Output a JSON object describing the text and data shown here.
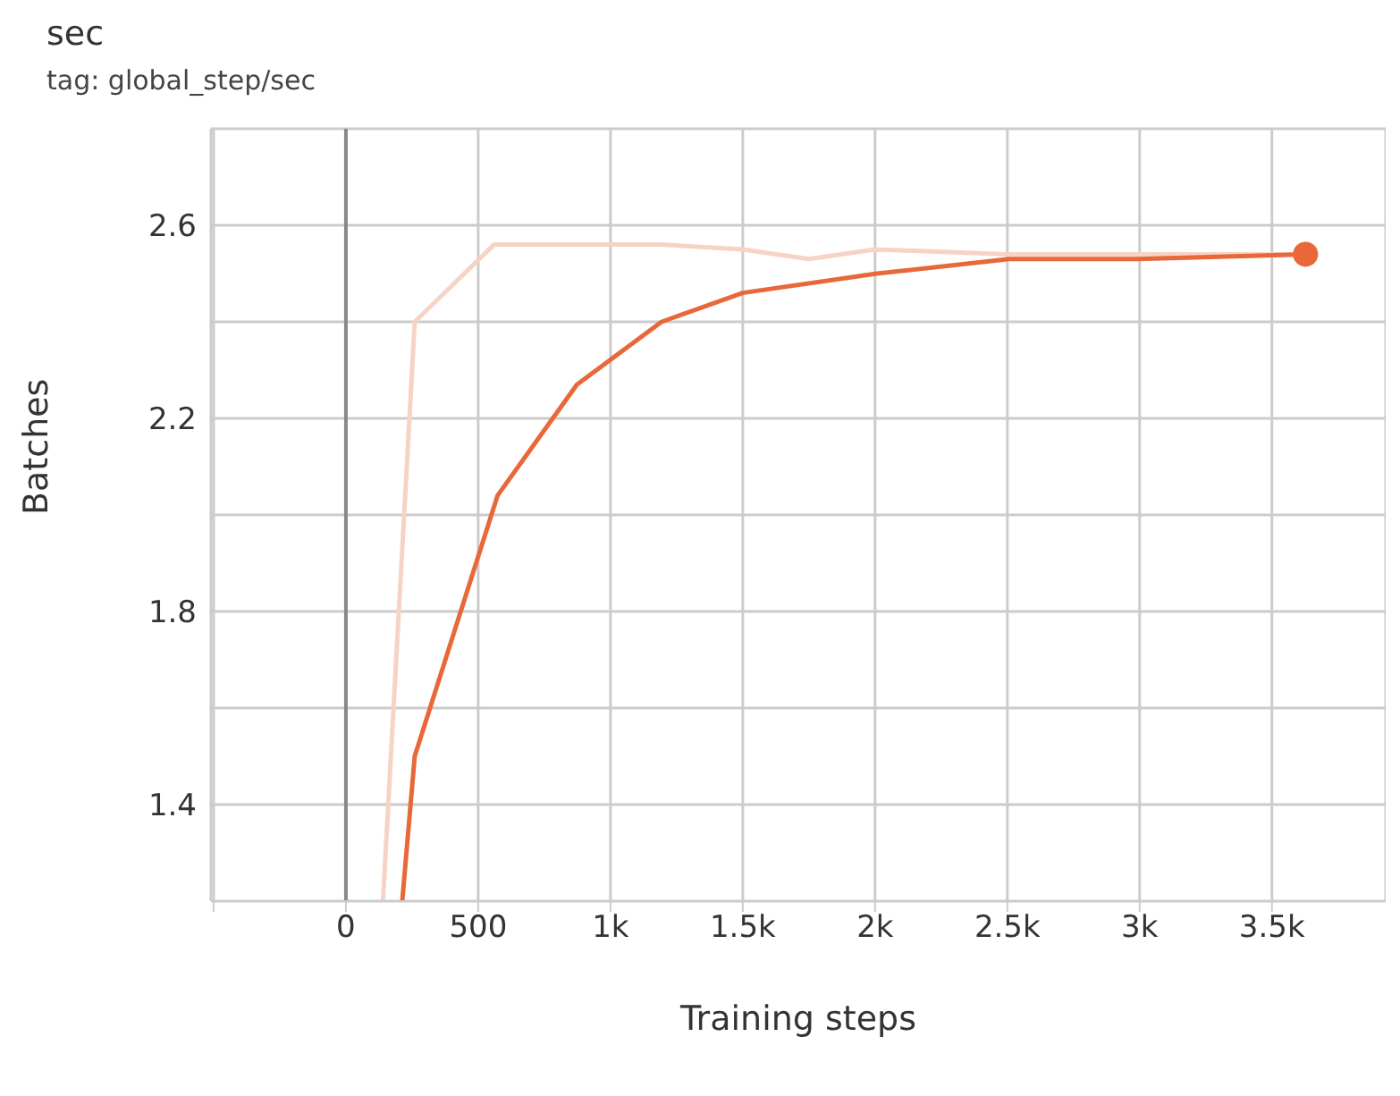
{
  "chart_data": {
    "type": "line",
    "title": "sec",
    "subtitle": "tag: global_step/sec",
    "xlabel": "Training steps",
    "ylabel": "Batches",
    "xlim": [
      -510,
      3930
    ],
    "ylim": [
      1.2,
      2.8
    ],
    "xticks": [
      {
        "value": -500,
        "label": null
      },
      0,
      500,
      {
        "value": 1000,
        "label": "1k"
      },
      {
        "value": 1500,
        "label": "1.5k"
      },
      {
        "value": 2000,
        "label": "2k"
      },
      {
        "value": 2500,
        "label": "2.5k"
      },
      {
        "value": 3000,
        "label": "3k"
      },
      {
        "value": 3500,
        "label": "3.5k"
      }
    ],
    "yticks": [
      1.4,
      {
        "value": 1.6,
        "label": null
      },
      1.8,
      {
        "value": 2.0,
        "label": null
      },
      2.2,
      {
        "value": 2.4,
        "label": null
      },
      2.6
    ],
    "grid": true,
    "marker": "none",
    "line_style": "solid",
    "ref_lines": [
      {
        "axis": "x",
        "value": 0,
        "color": "#888888"
      }
    ],
    "series": [
      {
        "color": "#f7d3c5",
        "x": [
          140,
          260,
          560,
          1190,
          1500,
          1750,
          2000,
          2500,
          3000,
          3627
        ],
        "values": [
          1.2,
          2.4,
          2.56,
          2.56,
          2.55,
          2.53,
          2.55,
          2.54,
          2.54,
          2.54
        ]
      },
      {
        "color": "#e8683a",
        "x": [
          213,
          260,
          573,
          873,
          1193,
          1500,
          2007,
          2507,
          2993,
          3627
        ],
        "values": [
          1.2,
          1.5,
          2.04,
          2.27,
          2.4,
          2.46,
          2.5,
          2.53,
          2.53,
          2.54
        ]
      },
      {
        "type": "scatter",
        "marker": "circle",
        "color": "#e8683a",
        "x": [
          3627
        ],
        "values": [
          2.54
        ]
      }
    ]
  }
}
